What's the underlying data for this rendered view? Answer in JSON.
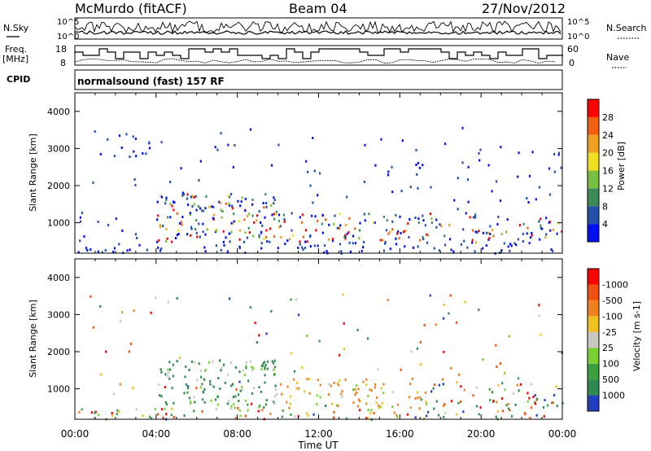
{
  "header": {
    "station": "McMurdo (fitACF)",
    "beam": "Beam 04",
    "date": "27/Nov/2012"
  },
  "top_panels": {
    "left_labels": {
      "nsky": "N.Sky",
      "freq": "Freq.",
      "freq_unit": "[MHz]",
      "cpid": "CPID"
    },
    "right_labels": {
      "nsearch": "N.Search",
      "nave": "Nave"
    },
    "noise_ticks": {
      "upper": "10^5",
      "lower": "10^0"
    },
    "freq_ticks": {
      "upper": "18",
      "lower": "8"
    },
    "nave_ticks": {
      "upper": "60",
      "lower": "0"
    },
    "cpid_text": "normalsound (fast) 157 RF"
  },
  "chart_data": [
    {
      "type": "heatmap",
      "panel": "power",
      "ylabel": "Slant Range [km]",
      "ylim": [
        180,
        4500
      ],
      "yticks": [
        1000,
        2000,
        3000,
        4000
      ],
      "xlabel": "Time UT",
      "xlim_hours": [
        0,
        24
      ],
      "xtick_labels": [
        "00:00",
        "04:00",
        "08:00",
        "12:00",
        "16:00",
        "20:00",
        "00:00"
      ],
      "colorbar": {
        "label": "Power [dB]",
        "ticks": [
          4,
          8,
          12,
          16,
          20,
          24,
          28
        ],
        "colors": [
          "#0010f0",
          "#2050a8",
          "#3a8a5a",
          "#78c040",
          "#f0e020",
          "#f0a020",
          "#f06010",
          "#ff0000"
        ]
      },
      "scatter_regions": [
        {
          "t0": 0.1,
          "t1": 24,
          "r0": 200,
          "r1": 3600,
          "density": 0.08
        },
        {
          "t0": 4.0,
          "t1": 10.0,
          "r0": 500,
          "r1": 1800,
          "density": 0.75
        },
        {
          "t0": 10.0,
          "t1": 17.5,
          "r0": 500,
          "r1": 1300,
          "density": 0.65
        },
        {
          "t0": 17.5,
          "t1": 24,
          "r0": 500,
          "r1": 1200,
          "density": 0.55
        },
        {
          "t0": 0.8,
          "t1": 3.8,
          "r0": 2800,
          "r1": 3500,
          "density": 0.3
        },
        {
          "t0": 0.1,
          "t1": 24,
          "r0": 200,
          "r1": 500,
          "density": 0.45
        }
      ]
    },
    {
      "type": "heatmap",
      "panel": "velocity",
      "ylabel": "Slant Range [km]",
      "ylim": [
        180,
        4500
      ],
      "yticks": [
        1000,
        2000,
        3000,
        4000
      ],
      "xlabel": "Time UT",
      "xlim_hours": [
        0,
        24
      ],
      "xtick_labels": [
        "00:00",
        "04:00",
        "08:00",
        "12:00",
        "16:00",
        "20:00",
        "00:00"
      ],
      "colorbar": {
        "label": "Velocity [m s-1]",
        "ticks": [
          "1000",
          "500",
          "100",
          "25",
          "-25",
          "-100",
          "-500",
          "-1000"
        ],
        "colors": [
          "#2040c0",
          "#2e8a50",
          "#3aa040",
          "#7ad030",
          "#c8c8c0",
          "#f0c020",
          "#f08020",
          "#f05010",
          "#ff0000"
        ]
      },
      "scatter_regions": [
        {
          "t0": 0.1,
          "t1": 24,
          "r0": 200,
          "r1": 3600,
          "density": 0.06
        },
        {
          "t0": 4.0,
          "t1": 10.0,
          "r0": 500,
          "r1": 1800,
          "density": 0.75
        },
        {
          "t0": 10.0,
          "t1": 17.5,
          "r0": 500,
          "r1": 1300,
          "density": 0.55
        },
        {
          "t0": 17.5,
          "t1": 24,
          "r0": 500,
          "r1": 1200,
          "density": 0.5
        },
        {
          "t0": 0.1,
          "t1": 24,
          "r0": 200,
          "r1": 500,
          "density": 0.45
        }
      ]
    }
  ]
}
